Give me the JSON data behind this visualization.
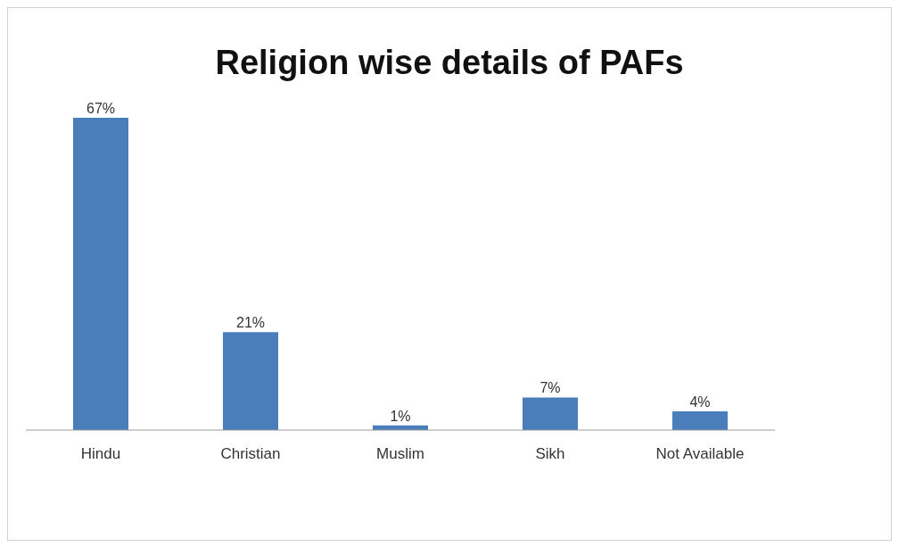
{
  "chart_data": {
    "type": "bar",
    "title": "Religion wise details of PAFs",
    "categories": [
      "Hindu",
      "Christian",
      "Muslim",
      "Sikh",
      "Not Available"
    ],
    "values": [
      67,
      21,
      1,
      7,
      4
    ],
    "value_labels": [
      "67%",
      "21%",
      "1%",
      "7%",
      "4%"
    ],
    "color": "#4a7ebb"
  }
}
